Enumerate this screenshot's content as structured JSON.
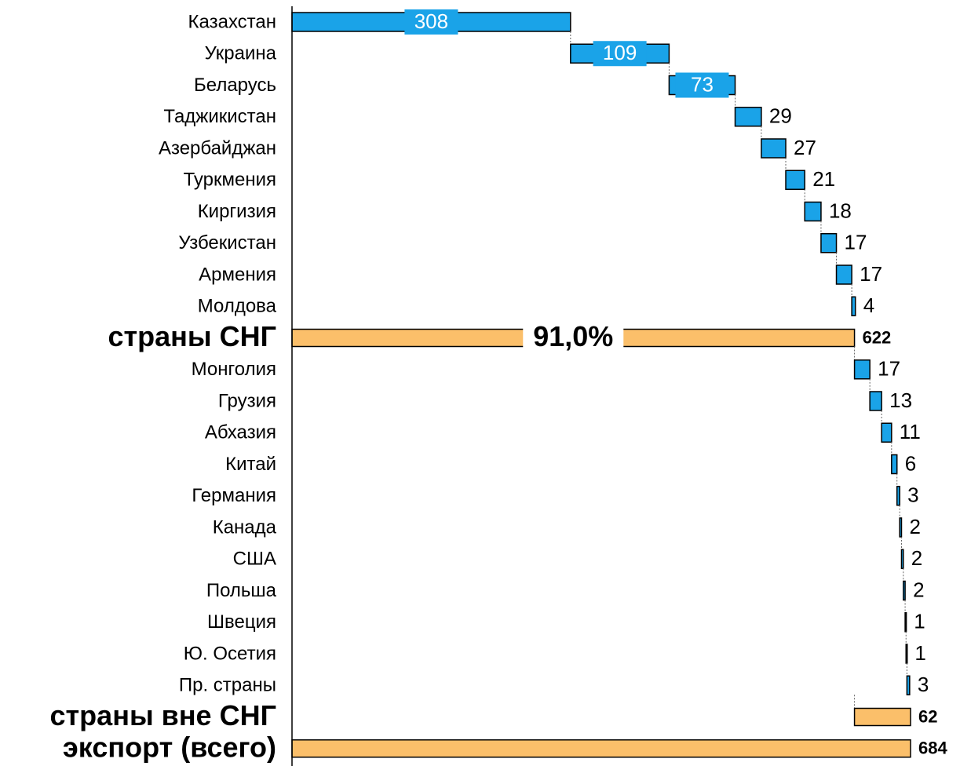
{
  "chart_data": {
    "type": "waterfall",
    "categories": [
      "Казахстан",
      "Украина",
      "Беларусь",
      "Таджикистан",
      "Азербайджан",
      "Туркмения",
      "Киргизия",
      "Узбекистан",
      "Армения",
      "Молдова",
      "страны СНГ",
      "Монголия",
      "Грузия",
      "Абхазия",
      "Китай",
      "Германия",
      "Канада",
      "США",
      "Польша",
      "Швеция",
      "Ю. Осетия",
      "Пр. страны",
      "страны вне СНГ",
      "экспорт (всего)"
    ],
    "values": [
      308,
      109,
      73,
      29,
      27,
      21,
      18,
      17,
      17,
      4,
      622,
      17,
      13,
      11,
      6,
      3,
      2,
      2,
      2,
      1,
      1,
      3,
      62,
      684
    ],
    "kinds": [
      "delta",
      "delta",
      "delta",
      "delta",
      "delta",
      "delta",
      "delta",
      "delta",
      "delta",
      "delta",
      "subtotal",
      "delta",
      "delta",
      "delta",
      "delta",
      "delta",
      "delta",
      "delta",
      "delta",
      "delta",
      "delta",
      "delta",
      "subtotal",
      "total"
    ],
    "delta_color": "#1aa3e8",
    "total_color": "#fbbf6a",
    "annotation": "91,0%",
    "xlim": [
      0,
      684
    ]
  }
}
